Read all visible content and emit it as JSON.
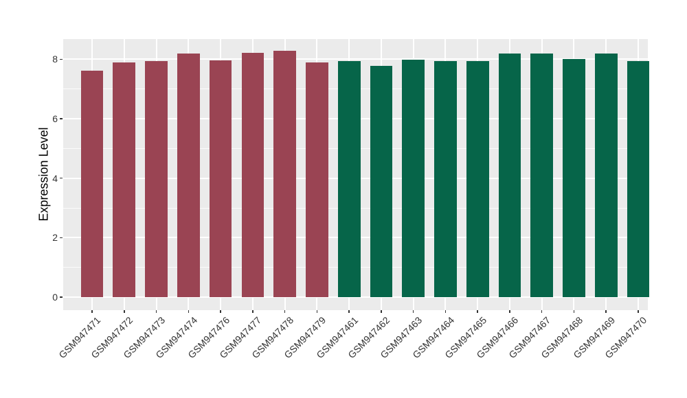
{
  "figure": {
    "background": "#FFFFFF"
  },
  "chart_data": {
    "type": "bar",
    "title": "",
    "xlabel": "",
    "ylabel": "Expression Level",
    "legend": "none",
    "grid": true,
    "panel_background": "#EBEBEB",
    "grid_color": "#FFFFFF",
    "axis_text_color": "#333333",
    "axis_title_color": "#000000",
    "tick_color": "#333333",
    "x_label_rotation": 45,
    "ylim": [
      -0.44,
      8.68
    ],
    "yticks_major": [
      0,
      2,
      4,
      6,
      8
    ],
    "yticks_minor": [
      1,
      3,
      5,
      7
    ],
    "categories": [
      "GSM947471",
      "GSM947472",
      "GSM947473",
      "GSM947474",
      "GSM947476",
      "GSM947477",
      "GSM947478",
      "GSM947479",
      "GSM947461",
      "GSM947462",
      "GSM947463",
      "GSM947464",
      "GSM947465",
      "GSM947466",
      "GSM947467",
      "GSM947468",
      "GSM947469",
      "GSM947470"
    ],
    "values": [
      7.61,
      7.9,
      7.95,
      8.2,
      7.97,
      8.22,
      8.28,
      7.89,
      7.95,
      7.77,
      7.98,
      7.95,
      7.95,
      8.2,
      8.2,
      8.02,
      8.2,
      7.93
    ],
    "groups": [
      "maroon",
      "maroon",
      "maroon",
      "maroon",
      "maroon",
      "maroon",
      "maroon",
      "maroon",
      "green",
      "green",
      "green",
      "green",
      "green",
      "green",
      "green",
      "green",
      "green",
      "green"
    ],
    "group_colors": {
      "maroon": "#9A4453",
      "green": "#066549"
    }
  }
}
